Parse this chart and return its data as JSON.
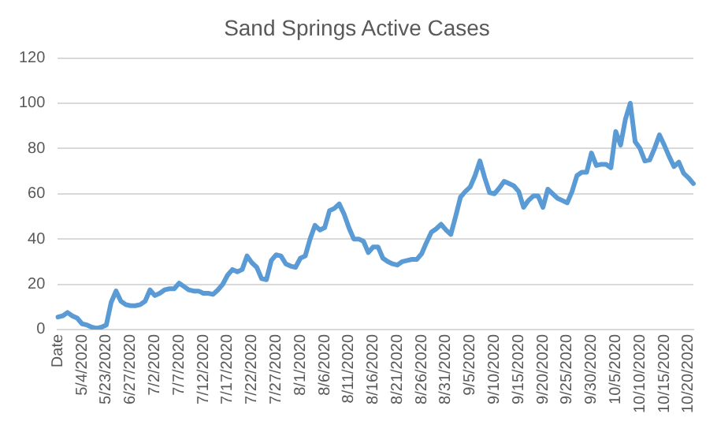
{
  "chart_data": {
    "type": "line",
    "title": "Sand Springs Active Cases",
    "categories": [
      "Date",
      null,
      null,
      null,
      null,
      "5/4/2020",
      null,
      null,
      null,
      null,
      "5/23/2020",
      null,
      null,
      null,
      null,
      "6/27/2020",
      null,
      null,
      null,
      null,
      "7/2/2020",
      null,
      null,
      null,
      null,
      "7/7/2020",
      null,
      null,
      null,
      null,
      "7/12/2020",
      null,
      null,
      null,
      null,
      "7/17/2020",
      null,
      null,
      null,
      null,
      "7/22/2020",
      null,
      null,
      null,
      null,
      "7/27/2020",
      null,
      null,
      null,
      null,
      "8/1/2020",
      null,
      null,
      null,
      null,
      "8/6/2020",
      null,
      null,
      null,
      null,
      "8/11/2020",
      null,
      null,
      null,
      null,
      "8/16/2020",
      null,
      null,
      null,
      null,
      "8/21/2020",
      null,
      null,
      null,
      null,
      "8/26/2020",
      null,
      null,
      null,
      null,
      "8/31/2020",
      null,
      null,
      null,
      null,
      "9/5/2020",
      null,
      null,
      null,
      null,
      "9/10/2020",
      null,
      null,
      null,
      null,
      "9/15/2020",
      null,
      null,
      null,
      null,
      "9/20/2020",
      null,
      null,
      null,
      null,
      "9/25/2020",
      null,
      null,
      null,
      null,
      "9/30/2020",
      null,
      null,
      null,
      null,
      "10/5/2020",
      null,
      null,
      null,
      null,
      "10/10/2020",
      null,
      null,
      null,
      null,
      "10/15/2020",
      null,
      null,
      null,
      null,
      "10/20/2020",
      null
    ],
    "series": [
      {
        "color": "#5b9bd5",
        "values": [
          5.5,
          6,
          7.5,
          6,
          5,
          2.5,
          2,
          1,
          0.5,
          1,
          2,
          12,
          17,
          12.5,
          11,
          10.5,
          10.5,
          11,
          12.5,
          17.5,
          15,
          16,
          17.5,
          18,
          18,
          20.5,
          19,
          17.5,
          17,
          17,
          16,
          16,
          15.5,
          17.5,
          20,
          24,
          26.5,
          25.5,
          26.5,
          32.5,
          29.5,
          27.5,
          22.5,
          22,
          30.5,
          33,
          32.5,
          29,
          28,
          27.5,
          31.5,
          32.5,
          40,
          46,
          44,
          45,
          52.5,
          53.5,
          55.5,
          51,
          45,
          40,
          40,
          39,
          34,
          36.5,
          36.5,
          31.5,
          30,
          29,
          28.5,
          30,
          30.5,
          31,
          31,
          33.5,
          38.5,
          43,
          44.5,
          46.5,
          44,
          42,
          50,
          58.5,
          61,
          63,
          68,
          74.5,
          67,
          60.5,
          60,
          62.5,
          65.5,
          64.5,
          63.5,
          61,
          54,
          57,
          59,
          59,
          54,
          62,
          60,
          58,
          57,
          56,
          61,
          68,
          69.5,
          69.5,
          78,
          72.5,
          73,
          73,
          71.5,
          87.5,
          81.5,
          93,
          100,
          83,
          80,
          74.5,
          75,
          80,
          86,
          81.5,
          76.5,
          72,
          74,
          69,
          67,
          64.5
        ]
      }
    ],
    "ylim": [
      0,
      120
    ],
    "yticks": [
      0,
      20,
      40,
      60,
      80,
      100,
      120
    ],
    "grid": "y",
    "marker": "none",
    "line_style": "solid",
    "legend": false
  }
}
